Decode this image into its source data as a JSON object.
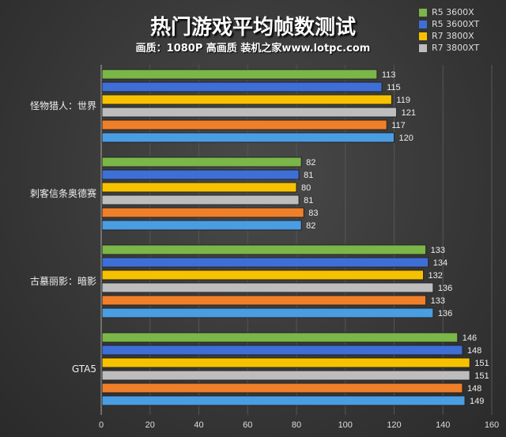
{
  "chart_data": {
    "type": "bar",
    "orientation": "horizontal",
    "title": "热门游戏平均帧数测试",
    "subtitle": "画质：1080P 高画质 装机之家www.lotpc.com",
    "categories": [
      "怪物猎人：世界",
      "刺客信条奥德赛",
      "古墓丽影：暗影",
      "GTA5"
    ],
    "series": [
      {
        "name": "R5 3600X",
        "color": "#7ab648",
        "values": [
          113,
          82,
          133,
          146
        ]
      },
      {
        "name": "R5 3600XT",
        "color": "#3d6fd6",
        "values": [
          115,
          81,
          134,
          148
        ]
      },
      {
        "name": "R7 3800X",
        "color": "#f6c200",
        "values": [
          119,
          80,
          132,
          151
        ]
      },
      {
        "name": "R7 3800XT",
        "color": "#bdbdbd",
        "values": [
          121,
          81,
          136,
          151
        ]
      },
      {
        "color": "#f07f2a",
        "values": [
          117,
          83,
          133,
          148
        ]
      },
      {
        "color": "#4b9de2",
        "values": [
          120,
          82,
          136,
          149
        ]
      }
    ],
    "xlim": [
      0,
      160
    ],
    "xticks": [
      0,
      20,
      40,
      60,
      80,
      100,
      120,
      140,
      160
    ],
    "grid": true,
    "legend_position": "top-right"
  }
}
